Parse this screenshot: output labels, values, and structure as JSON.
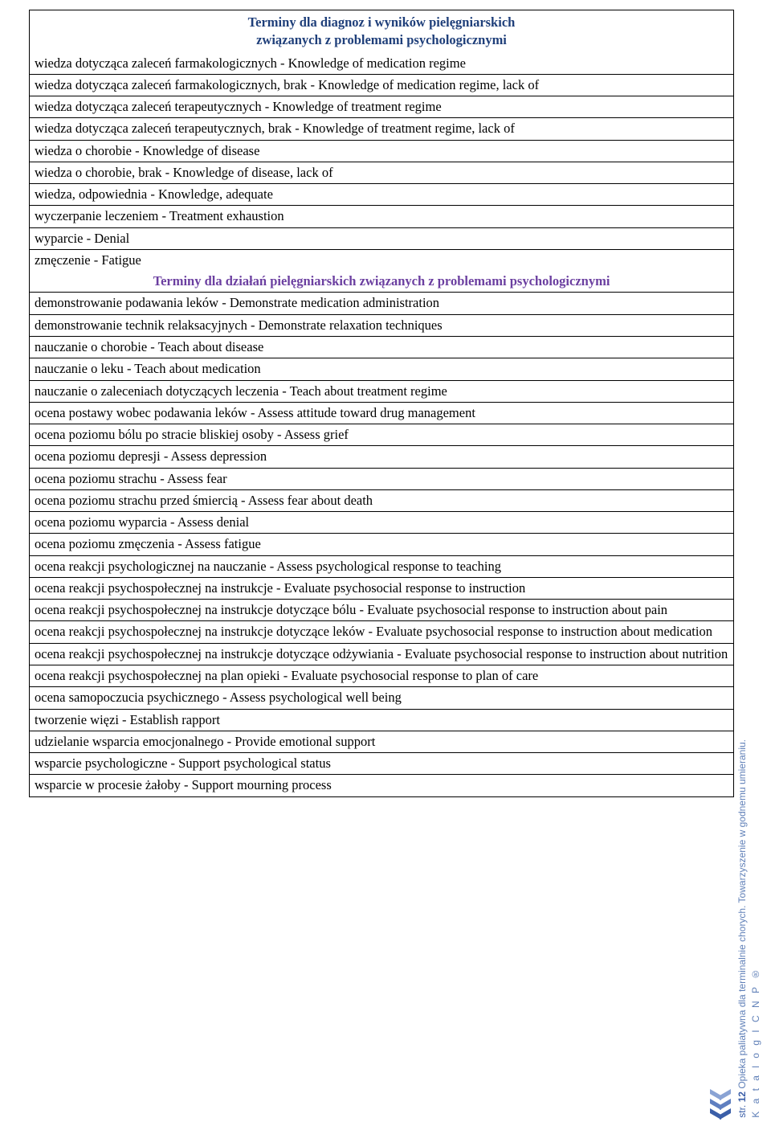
{
  "colors": {
    "border": "#000000",
    "text": "#000000",
    "header_main": "#1f3f7a",
    "header_sub": "#6b3fa0",
    "sidebar_text": "#3b5fa8",
    "chevron_dark": "#3b5fa8",
    "chevron_mid": "#5f7fc0",
    "chevron_light": "#8aa3d4",
    "background": "#ffffff"
  },
  "typography": {
    "body_font": "Times New Roman",
    "body_size_pt": 12,
    "sidebar_font": "Arial",
    "sidebar_size_pt": 9
  },
  "header": {
    "line1": "Terminy dla diagnoz i wyników pielęgniarskich",
    "line2": "związanych z problemami psychologicznymi"
  },
  "diag_rows": [
    "wiedza dotycząca zaleceń farmakologicznych - Knowledge of medication regime",
    "wiedza dotycząca zaleceń farmakologicznych, brak - Knowledge of medication regime, lack of",
    "wiedza dotycząca zaleceń terapeutycznych - Knowledge of treatment regime",
    "wiedza dotycząca zaleceń terapeutycznych, brak - Knowledge of treatment regime, lack of",
    "wiedza o chorobie - Knowledge of disease",
    "wiedza o chorobie, brak - Knowledge of disease, lack of",
    "wiedza, odpowiednia - Knowledge, adequate",
    "wyczerpanie leczeniem - Treatment exhaustion",
    "wyparcie - Denial",
    "zmęczenie - Fatigue"
  ],
  "sub_header": "Terminy dla działań pielęgniarskich związanych z problemami psychologicznymi",
  "action_rows": [
    "demonstrowanie podawania leków - Demonstrate medication administration",
    "demonstrowanie technik relaksacyjnych - Demonstrate relaxation techniques",
    "nauczanie o chorobie - Teach about disease",
    "nauczanie o leku - Teach about medication",
    "nauczanie o zaleceniach dotyczących leczenia - Teach about treatment regime",
    "ocena postawy wobec podawania leków - Assess attitude toward drug management",
    "ocena poziomu bólu po stracie bliskiej osoby - Assess grief",
    "ocena poziomu depresji - Assess depression",
    "ocena poziomu strachu - Assess fear",
    "ocena poziomu strachu przed śmiercią - Assess fear about death",
    "ocena poziomu wyparcia - Assess denial",
    "ocena poziomu zmęczenia - Assess fatigue",
    "ocena reakcji psychologicznej na nauczanie - Assess psychological response to teaching",
    "ocena reakcji psychospołecznej na instrukcje - Evaluate psychosocial response to instruction",
    "ocena reakcji psychospołecznej na instrukcje dotyczące bólu - Evaluate psychosocial response to instruction about pain",
    "ocena reakcji psychospołecznej na instrukcje dotyczące leków - Evaluate psychosocial response to instruction about medication",
    "ocena reakcji psychospołecznej na instrukcje dotyczące odżywiania - Evaluate psychosocial response to instruction about nutrition",
    "ocena reakcji psychospołecznej na plan opieki - Evaluate psychosocial response to plan of care",
    "ocena samopoczucia psychicznego - Assess psychological well being",
    "tworzenie więzi - Establish rapport",
    "udzielanie wsparcia emocjonalnego - Provide emotional support",
    "wsparcie psychologiczne - Support psychological status",
    "wsparcie w procesie żałoby - Support mourning process"
  ],
  "sidebar": {
    "page_label": "str.",
    "page_num": "12",
    "title_line": "Opieka paliatywna dla terminalnie chorych. Towarzyszenie w godnemu umieraniu.",
    "catalog_line": "K a t a l o g   I C N P ®"
  }
}
